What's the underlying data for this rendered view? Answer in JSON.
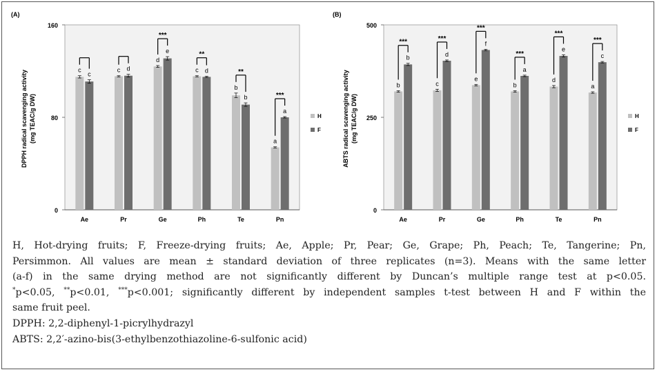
{
  "charts": [
    {
      "panel_label": "(A)",
      "ylabel_line1": "DPPH radical scavenging activity",
      "ylabel_line2": "(mg TEAC/g DW)",
      "ymax_label": "160",
      "ymid_label": "80",
      "ymin_label": "0"
    },
    {
      "panel_label": "(B)",
      "ylabel_line1": "ABTS radical scavenging activity",
      "ylabel_line2": "(mg TEAC/g DW)",
      "ymax_label": "500",
      "ymid_label": "250",
      "ymin_label": "0"
    }
  ],
  "colors": {
    "H": "#c0c0c0",
    "F": "#6e6e6e",
    "bracket": "#000000"
  },
  "chart_data": [
    {
      "type": "bar",
      "title": "(A)",
      "ylabel": "DPPH radical scavenging activity (mg TEAC/g DW)",
      "ylim": [
        0,
        160
      ],
      "yticks": [
        0,
        80,
        160
      ],
      "categories": [
        "Ae",
        "Pr",
        "Ge",
        "Ph",
        "Te",
        "Pn"
      ],
      "legend": {
        "position": "right",
        "entries": [
          "H",
          "F"
        ]
      },
      "series": [
        {
          "name": "H",
          "values": [
            115,
            115.5,
            124,
            115.5,
            99,
            54
          ],
          "errors": [
            1,
            0.5,
            0.8,
            0.5,
            2,
            0.5
          ],
          "letters": [
            "c",
            "c",
            "d",
            "c",
            "b",
            "a"
          ]
        },
        {
          "name": "F",
          "values": [
            111,
            116,
            131,
            115,
            91,
            80
          ],
          "errors": [
            1.5,
            1.2,
            1.5,
            0.5,
            1.5,
            0.6
          ],
          "letters": [
            "c",
            "d",
            "e",
            "d",
            "b",
            "a"
          ]
        }
      ],
      "significance": [
        "",
        "",
        "***",
        "**",
        "**",
        "***"
      ]
    },
    {
      "type": "bar",
      "title": "(B)",
      "ylabel": "ABTS radical scavenging activity (mg TEAC/g DW)",
      "ylim": [
        0,
        500
      ],
      "yticks": [
        0,
        250,
        500
      ],
      "categories": [
        "Ae",
        "Pr",
        "Ge",
        "Ph",
        "Te",
        "Pn"
      ],
      "legend": {
        "position": "right",
        "entries": [
          "H",
          "F"
        ]
      },
      "series": [
        {
          "name": "H",
          "values": [
            320,
            323,
            337,
            320,
            333,
            317
          ],
          "errors": [
            2,
            3,
            2,
            2,
            3,
            2
          ],
          "letters": [
            "b",
            "c",
            "e",
            "b",
            "d",
            "a"
          ]
        },
        {
          "name": "F",
          "values": [
            393,
            403,
            432,
            362,
            416,
            399
          ],
          "errors": [
            3,
            2,
            2,
            2,
            3,
            2
          ],
          "letters": [
            "b",
            "d",
            "f",
            "a",
            "e",
            "c"
          ]
        }
      ],
      "significance": [
        "***",
        "***",
        "***",
        "***",
        "***",
        "***"
      ]
    }
  ],
  "caption": {
    "line1": "H, Hot-drying fruits; F, Freeze-drying fruits; Ae, Apple; Pr, Pear; Ge, Grape; Ph, Peach; Te, Tangerine; Pn,",
    "line2": "Persimmon. All values are mean ± standard deviation of three replicates (n=3). Means with the same letter",
    "line3": "(a-f) in the same drying method are not significantly different by Duncan’s multiple range test at p<0.05.",
    "line4_sup1": "*",
    "line4_a": "p<0.05, ",
    "line4_sup2": "**",
    "line4_b": "p<0.01, ",
    "line4_sup3": "***",
    "line4_c": "p<0.001; significantly different by independent samples t-test between H and F within the",
    "line5": "same fruit peel.",
    "dpph": "DPPH: 2,2-diphenyl-1-picrylhydrazyl",
    "abts": "ABTS: 2,2′-azino-bis(3-ethylbenzothiazoline-6-sulfonic acid)"
  }
}
